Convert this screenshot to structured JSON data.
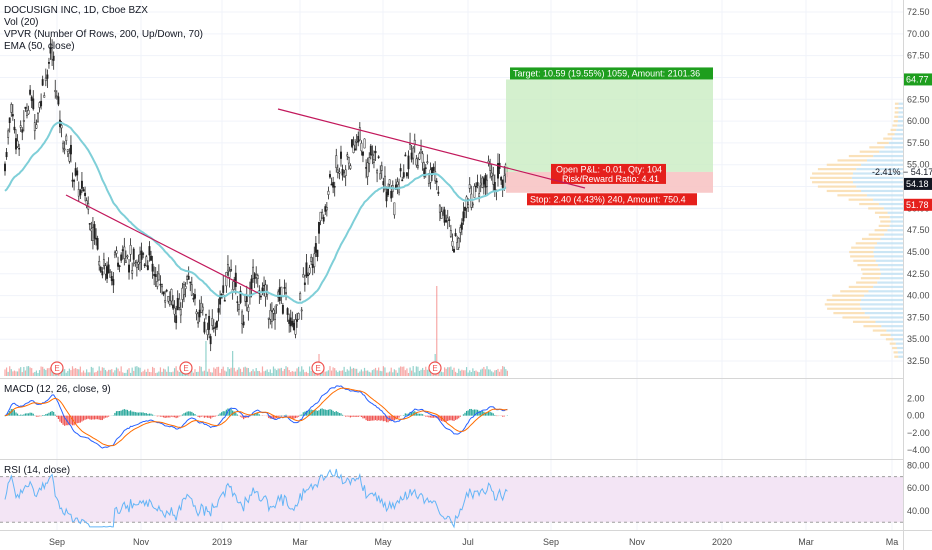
{
  "header": {
    "symbol": "DOCUSIGN INC, 1D, Cboe BZX",
    "indicators": [
      "Vol (20)",
      "VPVR (Number Of Rows, 200, Up/Down, 70)",
      "EMA (50, close)"
    ]
  },
  "trade_box": {
    "target_text": "Target: 10.59 (19.55%) 1059, Amount: 2101.36",
    "open_pl_text": "Open P&L: -0.01, Qty: 104",
    "risk_reward_text": "Risk/Reward Ratio: 4.41",
    "stop_text": "Stop: 2.40 (4.43%) 240, Amount: 750.4",
    "target_price": 64.77,
    "entry_price": 54.17,
    "stop_price": 51.78,
    "target_label": "64.77",
    "entry_label": "-2.41% − 54.17",
    "current_label": "54.18",
    "stop_label": "51.78"
  },
  "colors": {
    "up": "#26a69a",
    "down": "#ef5350",
    "ema": "#7fcfd8",
    "trendline": "#c2185b",
    "target_fill": "#c9ecc2",
    "stop_fill": "#f7c4c4",
    "target_tag": "#1e9e1e",
    "stop_tag": "#e5201c",
    "macd_line": "#2962ff",
    "signal_line": "#ff6d00",
    "rsi_line": "#64b5f6",
    "rsi_band": "#f3e5f5"
  },
  "chart_data": [
    {
      "type": "candlestick",
      "name": "price",
      "y_ticks": [
        "72.50",
        "70.00",
        "67.50",
        "65.00",
        "62.50",
        "60.00",
        "57.50",
        "55.00",
        "52.50",
        "50.00",
        "47.50",
        "45.00",
        "42.50",
        "40.00",
        "37.50",
        "35.00",
        "32.50"
      ],
      "ylim": [
        31.0,
        73.5
      ],
      "x_ticks": [
        "Sep",
        "Nov",
        "2019",
        "Mar",
        "May",
        "Jul",
        "Sep",
        "Nov",
        "2020",
        "Mar",
        "Ma"
      ],
      "path_points": [
        [
          0,
          55
        ],
        [
          4,
          62
        ],
        [
          8,
          57
        ],
        [
          12,
          60
        ],
        [
          16,
          63
        ],
        [
          20,
          60
        ],
        [
          24,
          64
        ],
        [
          28,
          66
        ],
        [
          30,
          68
        ],
        [
          33,
          63
        ],
        [
          36,
          59
        ],
        [
          40,
          57
        ],
        [
          44,
          54
        ],
        [
          48,
          52
        ],
        [
          52,
          51
        ],
        [
          56,
          48
        ],
        [
          60,
          45
        ],
        [
          64,
          43
        ],
        [
          68,
          42
        ],
        [
          72,
          44
        ],
        [
          76,
          46
        ],
        [
          80,
          44
        ],
        [
          84,
          43
        ],
        [
          88,
          45
        ],
        [
          92,
          44
        ],
        [
          96,
          42
        ],
        [
          100,
          41
        ],
        [
          104,
          40
        ],
        [
          108,
          38
        ],
        [
          112,
          39
        ],
        [
          116,
          42
        ],
        [
          120,
          40
        ],
        [
          124,
          38
        ],
        [
          128,
          37
        ],
        [
          132,
          36
        ],
        [
          136,
          38
        ],
        [
          140,
          41
        ],
        [
          144,
          43
        ],
        [
          148,
          40
        ],
        [
          152,
          38
        ],
        [
          156,
          40
        ],
        [
          160,
          43
        ],
        [
          164,
          41
        ],
        [
          168,
          39
        ],
        [
          172,
          38
        ],
        [
          176,
          40
        ],
        [
          180,
          39
        ],
        [
          184,
          37
        ],
        [
          188,
          39
        ],
        [
          192,
          42
        ],
        [
          196,
          44
        ],
        [
          200,
          47
        ],
        [
          204,
          50
        ],
        [
          208,
          53
        ],
        [
          212,
          55
        ],
        [
          216,
          54
        ],
        [
          220,
          56
        ],
        [
          224,
          58
        ],
        [
          228,
          57
        ],
        [
          232,
          55
        ],
        [
          236,
          56
        ],
        [
          240,
          54
        ],
        [
          244,
          52
        ],
        [
          248,
          51
        ],
        [
          252,
          53
        ],
        [
          256,
          55
        ],
        [
          260,
          57
        ],
        [
          264,
          56
        ],
        [
          268,
          54
        ],
        [
          272,
          55
        ],
        [
          276,
          52
        ],
        [
          280,
          49
        ],
        [
          284,
          47
        ],
        [
          288,
          46
        ],
        [
          292,
          50
        ],
        [
          296,
          52
        ],
        [
          300,
          51
        ],
        [
          304,
          53
        ],
        [
          308,
          54
        ],
        [
          312,
          53
        ],
        [
          316,
          54
        ],
        [
          320,
          54
        ]
      ],
      "events": [
        "E",
        "E",
        "E",
        "E"
      ],
      "event_x": [
        57,
        186,
        318,
        435
      ]
    },
    {
      "type": "line",
      "name": "MACD (12, 26, close, 9)",
      "y_ticks": [
        "2.00",
        "0.00",
        "−2.00",
        "−4.00"
      ],
      "ylim": [
        -4.6,
        3.0
      ]
    },
    {
      "type": "line",
      "name": "RSI (14, close)",
      "y_ticks": [
        "80.00",
        "60.00",
        "40.00"
      ],
      "ylim": [
        25,
        82
      ],
      "band": [
        30,
        70
      ]
    }
  ]
}
